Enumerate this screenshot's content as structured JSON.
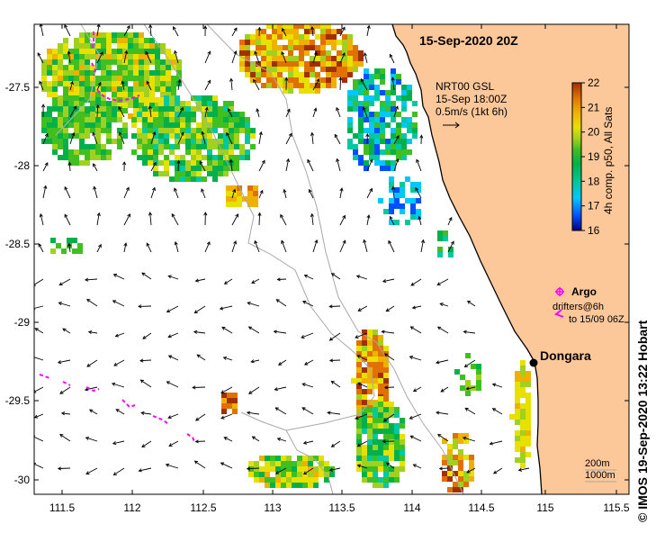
{
  "header": {
    "date_title": "15-Sep-2020 20Z"
  },
  "current_info": {
    "line1": "NRT00 GSL",
    "line2": "15-Sep 18:00Z",
    "line3": "0.5m/s (1kt 6h)"
  },
  "colorbar": {
    "ticks": [
      "22",
      "21",
      "20",
      "19",
      "18",
      "17",
      "16"
    ],
    "label": "4h comp. p50, All Sats",
    "stops": [
      "#00007f",
      "#0050ff",
      "#00c8ff",
      "#00c8a0",
      "#00b04a",
      "#40c020",
      "#a0d020",
      "#e8e000",
      "#f0b000",
      "#e07000",
      "#a03000"
    ]
  },
  "legend": {
    "argo_label": "Argo",
    "drifters_line1": "drifters@6h",
    "drifters_line2": "to 15/09 06Z",
    "argo_color": "#ff00ff"
  },
  "place": {
    "name": "Dongara"
  },
  "bathymetry": {
    "line1": "200m",
    "line2": "1000m"
  },
  "axes": {
    "x_ticks": [
      "111.5",
      "112",
      "112.5",
      "113",
      "113.5",
      "114",
      "114.5",
      "115",
      "115.5"
    ],
    "y_ticks": [
      "-27.5",
      "-28",
      "-28.5",
      "-29",
      "-29.5",
      "-30"
    ]
  },
  "credit": "© IMOS 19-Sep-2020 13:22 Hobart",
  "colors": {
    "land": "#fcc89a",
    "coast": "#000000",
    "isobath": "#a0a0a0",
    "arrow": "#000000"
  }
}
